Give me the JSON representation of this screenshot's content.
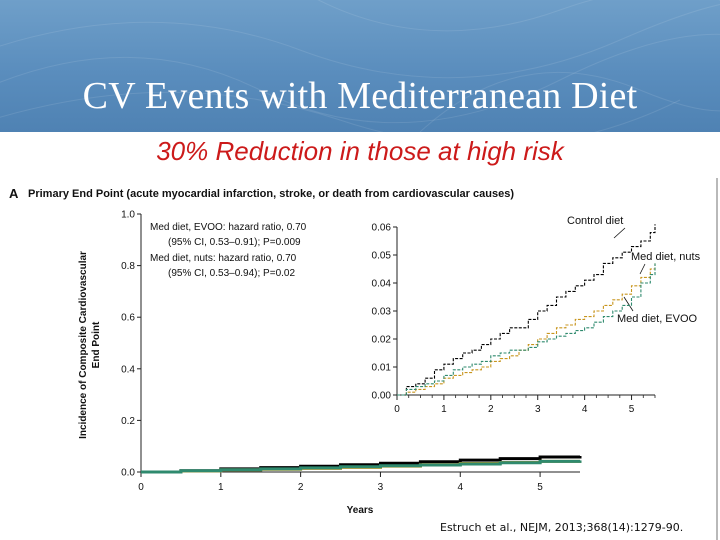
{
  "slide": {
    "title": "CV Events with Mediterranean Diet",
    "subtitle": "30% Reduction in those at high risk",
    "citation": "Estruch et al., NEJM, 2013;368(14):1279-90.",
    "accent": "#5a8dbd",
    "subtitle_color": "#cc1a1a"
  },
  "chart_data": [
    {
      "type": "line",
      "panel_label": "A",
      "title": "Primary End Point (acute myocardial infarction, stroke, or death from cardiovascular causes)",
      "xlabel": "Years",
      "ylabel_line1": "Incidence of Composite Cardiovascular",
      "ylabel_line2": "End Point",
      "xlim": [
        0,
        5.5
      ],
      "ylim": [
        0,
        1.0
      ],
      "xticks": [
        0,
        1,
        2,
        3,
        4,
        5
      ],
      "yticks": [
        "0.0",
        "0.2",
        "0.4",
        "0.6",
        "0.8",
        "1.0"
      ],
      "annotations": [
        "Med diet, EVOO: hazard ratio, 0.70",
        "(95% CI, 0.53–0.91); P=0.009",
        "Med diet, nuts: hazard ratio, 0.70",
        "(95% CI, 0.53–0.94);  P=0.02"
      ],
      "series": [
        {
          "name": "Control diet",
          "color": "#000000",
          "x": [
            0,
            0.5,
            1,
            1.5,
            2,
            2.5,
            3,
            3.5,
            4,
            4.5,
            5,
            5.5
          ],
          "y": [
            0,
            0.005,
            0.012,
            0.017,
            0.022,
            0.028,
            0.034,
            0.04,
            0.046,
            0.052,
            0.058,
            0.062
          ]
        },
        {
          "name": "Med diet, nuts",
          "color": "#c8951e",
          "x": [
            0,
            0.5,
            1,
            1.5,
            2,
            2.5,
            3,
            3.5,
            4,
            4.5,
            5,
            5.5
          ],
          "y": [
            0,
            0.004,
            0.008,
            0.011,
            0.014,
            0.018,
            0.023,
            0.028,
            0.033,
            0.037,
            0.041,
            0.043
          ]
        },
        {
          "name": "Med diet, EVOO",
          "color": "#2f8a6e",
          "x": [
            0,
            0.5,
            1,
            1.5,
            2,
            2.5,
            3,
            3.5,
            4,
            4.5,
            5,
            5.5
          ],
          "y": [
            0,
            0.005,
            0.009,
            0.012,
            0.016,
            0.02,
            0.024,
            0.027,
            0.031,
            0.036,
            0.041,
            0.045
          ]
        }
      ]
    },
    {
      "type": "line",
      "panel_label": "inset",
      "xlim": [
        0,
        5.5
      ],
      "ylim": [
        0,
        0.06
      ],
      "xticks": [
        0,
        1,
        2,
        3,
        4,
        5
      ],
      "yticks": [
        "0.00",
        "0.01",
        "0.02",
        "0.03",
        "0.04",
        "0.05",
        "0.06"
      ],
      "series_labels": [
        "Control diet",
        "Med diet, nuts",
        "Med diet, EVOO"
      ],
      "series": [
        {
          "name": "Control diet",
          "color": "#000000",
          "x": [
            0,
            0.2,
            0.4,
            0.6,
            0.8,
            1,
            1.2,
            1.4,
            1.6,
            1.8,
            2,
            2.2,
            2.4,
            2.6,
            2.8,
            3,
            3.2,
            3.4,
            3.6,
            3.8,
            4,
            4.2,
            4.4,
            4.6,
            4.8,
            5,
            5.2,
            5.4,
            5.5
          ],
          "y": [
            0,
            0.003,
            0.004,
            0.006,
            0.009,
            0.011,
            0.013,
            0.015,
            0.016,
            0.018,
            0.02,
            0.022,
            0.024,
            0.024,
            0.027,
            0.03,
            0.032,
            0.035,
            0.037,
            0.039,
            0.041,
            0.043,
            0.047,
            0.049,
            0.051,
            0.053,
            0.055,
            0.058,
            0.061
          ]
        },
        {
          "name": "Med diet, nuts",
          "color": "#c8951e",
          "x": [
            0,
            0.2,
            0.4,
            0.6,
            0.8,
            1,
            1.2,
            1.4,
            1.6,
            1.8,
            2,
            2.2,
            2.4,
            2.6,
            2.8,
            3,
            3.2,
            3.4,
            3.6,
            3.8,
            4,
            4.2,
            4.4,
            4.6,
            4.8,
            5,
            5.2,
            5.4,
            5.5
          ],
          "y": [
            0,
            0.001,
            0.002,
            0.003,
            0.004,
            0.006,
            0.007,
            0.008,
            0.009,
            0.01,
            0.012,
            0.013,
            0.014,
            0.016,
            0.018,
            0.02,
            0.022,
            0.024,
            0.025,
            0.027,
            0.028,
            0.03,
            0.032,
            0.034,
            0.036,
            0.039,
            0.042,
            0.045,
            0.047
          ]
        },
        {
          "name": "Med diet, EVOO",
          "color": "#2f8a6e",
          "x": [
            0,
            0.2,
            0.4,
            0.6,
            0.8,
            1,
            1.2,
            1.4,
            1.6,
            1.8,
            2,
            2.2,
            2.4,
            2.6,
            2.8,
            3,
            3.2,
            3.4,
            3.6,
            3.8,
            4,
            4.2,
            4.4,
            4.6,
            4.8,
            5,
            5.2,
            5.4,
            5.5
          ],
          "y": [
            0,
            0.002,
            0.003,
            0.004,
            0.005,
            0.007,
            0.009,
            0.01,
            0.011,
            0.012,
            0.014,
            0.015,
            0.016,
            0.016,
            0.017,
            0.019,
            0.02,
            0.021,
            0.022,
            0.023,
            0.024,
            0.026,
            0.028,
            0.03,
            0.032,
            0.035,
            0.04,
            0.043,
            0.047
          ]
        }
      ]
    }
  ]
}
